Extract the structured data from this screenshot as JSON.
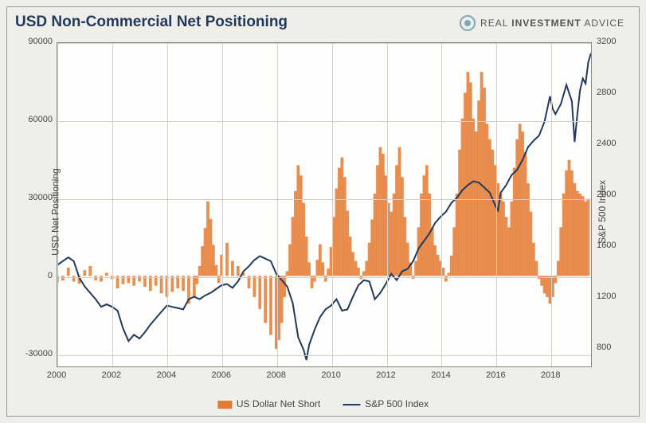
{
  "title": "USD Non-Commercial Net Positioning",
  "logo": {
    "brand_pre": "REAL ",
    "brand_bold": "INVESTMENT",
    "brand_post": " ADVICE"
  },
  "chart": {
    "type": "dual-axis-bar-line",
    "background_color": "#fdfdfb",
    "outer_background_color": "#efeee9",
    "grid_color": "#d0d0cc",
    "border_color": "#888888",
    "x": {
      "ticks": [
        2000,
        2002,
        2004,
        2006,
        2008,
        2010,
        2012,
        2014,
        2016,
        2018
      ],
      "lim": [
        2000,
        2019.5
      ]
    },
    "yL": {
      "label": "USD Net Positioning",
      "ticks": [
        -30000,
        0,
        30000,
        60000,
        90000
      ],
      "lim": [
        -35000,
        90000
      ]
    },
    "yR": {
      "label": "S&P 500 Index",
      "ticks": [
        800,
        1200,
        1600,
        2000,
        2400,
        2800,
        3200
      ],
      "lim": [
        650,
        3200
      ]
    },
    "bars": {
      "name": "US Dollar Net Short",
      "color": "#e57a32",
      "data": [
        [
          2000.0,
          -2500
        ],
        [
          2000.2,
          -1800
        ],
        [
          2000.4,
          3200
        ],
        [
          2000.6,
          -2200
        ],
        [
          2000.8,
          -3000
        ],
        [
          2001.0,
          2200
        ],
        [
          2001.2,
          3800
        ],
        [
          2001.4,
          -1800
        ],
        [
          2001.6,
          -2200
        ],
        [
          2001.8,
          1200
        ],
        [
          2002.0,
          -1200
        ],
        [
          2002.2,
          -4800
        ],
        [
          2002.4,
          -3200
        ],
        [
          2002.6,
          -2800
        ],
        [
          2002.8,
          -3800
        ],
        [
          2003.0,
          -2200
        ],
        [
          2003.2,
          -4200
        ],
        [
          2003.4,
          -5800
        ],
        [
          2003.6,
          -3800
        ],
        [
          2003.8,
          -6800
        ],
        [
          2004.0,
          -8200
        ],
        [
          2004.2,
          -6200
        ],
        [
          2004.4,
          -4800
        ],
        [
          2004.6,
          -5800
        ],
        [
          2004.8,
          -10800
        ],
        [
          2005.0,
          -8200
        ],
        [
          2005.1,
          -3200
        ],
        [
          2005.2,
          3800
        ],
        [
          2005.3,
          11500
        ],
        [
          2005.4,
          18500
        ],
        [
          2005.5,
          28800
        ],
        [
          2005.6,
          22000
        ],
        [
          2005.7,
          12000
        ],
        [
          2005.8,
          4200
        ],
        [
          2005.9,
          -2800
        ],
        [
          2006.0,
          8200
        ],
        [
          2006.2,
          12800
        ],
        [
          2006.4,
          5800
        ],
        [
          2006.6,
          3800
        ],
        [
          2006.8,
          1200
        ],
        [
          2007.0,
          -4800
        ],
        [
          2007.2,
          -8200
        ],
        [
          2007.4,
          -12800
        ],
        [
          2007.6,
          -18200
        ],
        [
          2007.8,
          -22800
        ],
        [
          2008.0,
          -28200
        ],
        [
          2008.1,
          -24800
        ],
        [
          2008.2,
          -18200
        ],
        [
          2008.3,
          -8200
        ],
        [
          2008.4,
          1800
        ],
        [
          2008.5,
          12200
        ],
        [
          2008.6,
          22800
        ],
        [
          2008.7,
          32800
        ],
        [
          2008.8,
          42800
        ],
        [
          2008.9,
          38800
        ],
        [
          2009.0,
          28200
        ],
        [
          2009.1,
          15200
        ],
        [
          2009.2,
          5200
        ],
        [
          2009.3,
          -4800
        ],
        [
          2009.4,
          -2200
        ],
        [
          2009.5,
          6200
        ],
        [
          2009.6,
          12200
        ],
        [
          2009.7,
          5200
        ],
        [
          2009.8,
          -2200
        ],
        [
          2009.9,
          2800
        ],
        [
          2010.0,
          11200
        ],
        [
          2010.1,
          22800
        ],
        [
          2010.2,
          33800
        ],
        [
          2010.3,
          41800
        ],
        [
          2010.4,
          45800
        ],
        [
          2010.5,
          38200
        ],
        [
          2010.6,
          25200
        ],
        [
          2010.7,
          15200
        ],
        [
          2010.8,
          9200
        ],
        [
          2010.9,
          5800
        ],
        [
          2011.0,
          3200
        ],
        [
          2011.1,
          -1200
        ],
        [
          2011.2,
          1800
        ],
        [
          2011.3,
          5800
        ],
        [
          2011.4,
          12800
        ],
        [
          2011.5,
          21800
        ],
        [
          2011.6,
          31800
        ],
        [
          2011.7,
          42800
        ],
        [
          2011.8,
          49800
        ],
        [
          2011.9,
          47200
        ],
        [
          2012.0,
          38800
        ],
        [
          2012.1,
          28200
        ],
        [
          2012.2,
          24800
        ],
        [
          2012.3,
          31800
        ],
        [
          2012.4,
          42800
        ],
        [
          2012.5,
          49800
        ],
        [
          2012.6,
          38200
        ],
        [
          2012.7,
          22800
        ],
        [
          2012.8,
          12800
        ],
        [
          2012.9,
          5200
        ],
        [
          2013.0,
          -1200
        ],
        [
          2013.1,
          5800
        ],
        [
          2013.2,
          18800
        ],
        [
          2013.3,
          31800
        ],
        [
          2013.4,
          38800
        ],
        [
          2013.5,
          42800
        ],
        [
          2013.6,
          31800
        ],
        [
          2013.7,
          18800
        ],
        [
          2013.8,
          11800
        ],
        [
          2013.9,
          8200
        ],
        [
          2014.0,
          5800
        ],
        [
          2014.1,
          3200
        ],
        [
          2014.2,
          -2200
        ],
        [
          2014.3,
          1200
        ],
        [
          2014.4,
          7800
        ],
        [
          2014.5,
          18800
        ],
        [
          2014.6,
          31800
        ],
        [
          2014.7,
          48800
        ],
        [
          2014.8,
          60800
        ],
        [
          2014.9,
          70800
        ],
        [
          2015.0,
          78800
        ],
        [
          2015.1,
          74800
        ],
        [
          2015.2,
          60800
        ],
        [
          2015.3,
          55800
        ],
        [
          2015.4,
          67800
        ],
        [
          2015.5,
          78800
        ],
        [
          2015.6,
          72800
        ],
        [
          2015.7,
          58800
        ],
        [
          2015.8,
          52800
        ],
        [
          2015.9,
          48800
        ],
        [
          2016.0,
          42800
        ],
        [
          2016.1,
          35800
        ],
        [
          2016.2,
          31800
        ],
        [
          2016.3,
          28800
        ],
        [
          2016.4,
          22800
        ],
        [
          2016.5,
          18800
        ],
        [
          2016.6,
          28800
        ],
        [
          2016.7,
          41800
        ],
        [
          2016.8,
          52800
        ],
        [
          2016.9,
          58800
        ],
        [
          2017.0,
          55800
        ],
        [
          2017.1,
          47800
        ],
        [
          2017.2,
          35800
        ],
        [
          2017.3,
          24800
        ],
        [
          2017.4,
          12800
        ],
        [
          2017.5,
          5800
        ],
        [
          2017.6,
          -1200
        ],
        [
          2017.7,
          -3800
        ],
        [
          2017.8,
          -6800
        ],
        [
          2017.9,
          -8200
        ],
        [
          2018.0,
          -10800
        ],
        [
          2018.1,
          -8200
        ],
        [
          2018.2,
          -2800
        ],
        [
          2018.3,
          5800
        ],
        [
          2018.4,
          18800
        ],
        [
          2018.5,
          31800
        ],
        [
          2018.6,
          40800
        ],
        [
          2018.7,
          44800
        ],
        [
          2018.8,
          40800
        ],
        [
          2018.9,
          35800
        ],
        [
          2019.0,
          32800
        ],
        [
          2019.1,
          31800
        ],
        [
          2019.2,
          30800
        ],
        [
          2019.3,
          28800
        ],
        [
          2019.4,
          29800
        ]
      ]
    },
    "line": {
      "name": "S&P 500 Index",
      "color": "#1f3a5c",
      "width": 2,
      "data": [
        [
          2000.0,
          1450
        ],
        [
          2000.2,
          1480
        ],
        [
          2000.4,
          1510
        ],
        [
          2000.6,
          1480
        ],
        [
          2000.8,
          1350
        ],
        [
          2001.0,
          1280
        ],
        [
          2001.2,
          1230
        ],
        [
          2001.4,
          1180
        ],
        [
          2001.6,
          1120
        ],
        [
          2001.8,
          1140
        ],
        [
          2002.0,
          1120
        ],
        [
          2002.2,
          1090
        ],
        [
          2002.4,
          950
        ],
        [
          2002.6,
          850
        ],
        [
          2002.8,
          900
        ],
        [
          2003.0,
          870
        ],
        [
          2003.2,
          920
        ],
        [
          2003.4,
          980
        ],
        [
          2003.6,
          1030
        ],
        [
          2003.8,
          1080
        ],
        [
          2004.0,
          1130
        ],
        [
          2004.2,
          1120
        ],
        [
          2004.4,
          1110
        ],
        [
          2004.6,
          1100
        ],
        [
          2004.8,
          1180
        ],
        [
          2005.0,
          1200
        ],
        [
          2005.2,
          1180
        ],
        [
          2005.4,
          1210
        ],
        [
          2005.6,
          1230
        ],
        [
          2005.8,
          1260
        ],
        [
          2006.0,
          1290
        ],
        [
          2006.2,
          1300
        ],
        [
          2006.4,
          1270
        ],
        [
          2006.6,
          1320
        ],
        [
          2006.8,
          1400
        ],
        [
          2007.0,
          1440
        ],
        [
          2007.2,
          1490
        ],
        [
          2007.4,
          1520
        ],
        [
          2007.6,
          1500
        ],
        [
          2007.8,
          1480
        ],
        [
          2008.0,
          1380
        ],
        [
          2008.2,
          1330
        ],
        [
          2008.4,
          1280
        ],
        [
          2008.6,
          1150
        ],
        [
          2008.8,
          880
        ],
        [
          2009.0,
          780
        ],
        [
          2009.1,
          700
        ],
        [
          2009.2,
          820
        ],
        [
          2009.4,
          940
        ],
        [
          2009.6,
          1040
        ],
        [
          2009.8,
          1100
        ],
        [
          2010.0,
          1130
        ],
        [
          2010.2,
          1180
        ],
        [
          2010.4,
          1090
        ],
        [
          2010.6,
          1100
        ],
        [
          2010.8,
          1200
        ],
        [
          2011.0,
          1290
        ],
        [
          2011.2,
          1330
        ],
        [
          2011.4,
          1320
        ],
        [
          2011.6,
          1180
        ],
        [
          2011.8,
          1230
        ],
        [
          2012.0,
          1300
        ],
        [
          2012.2,
          1380
        ],
        [
          2012.4,
          1330
        ],
        [
          2012.6,
          1400
        ],
        [
          2012.8,
          1420
        ],
        [
          2013.0,
          1480
        ],
        [
          2013.2,
          1580
        ],
        [
          2013.4,
          1640
        ],
        [
          2013.6,
          1700
        ],
        [
          2013.8,
          1780
        ],
        [
          2014.0,
          1830
        ],
        [
          2014.2,
          1870
        ],
        [
          2014.4,
          1940
        ],
        [
          2014.6,
          1980
        ],
        [
          2014.8,
          2040
        ],
        [
          2015.0,
          2080
        ],
        [
          2015.2,
          2110
        ],
        [
          2015.4,
          2100
        ],
        [
          2015.6,
          2060
        ],
        [
          2015.8,
          2020
        ],
        [
          2016.0,
          1920
        ],
        [
          2016.1,
          1880
        ],
        [
          2016.2,
          2020
        ],
        [
          2016.4,
          2080
        ],
        [
          2016.6,
          2160
        ],
        [
          2016.8,
          2200
        ],
        [
          2017.0,
          2280
        ],
        [
          2017.2,
          2380
        ],
        [
          2017.4,
          2430
        ],
        [
          2017.6,
          2470
        ],
        [
          2017.8,
          2580
        ],
        [
          2018.0,
          2780
        ],
        [
          2018.1,
          2680
        ],
        [
          2018.2,
          2640
        ],
        [
          2018.4,
          2720
        ],
        [
          2018.6,
          2870
        ],
        [
          2018.8,
          2740
        ],
        [
          2018.9,
          2420
        ],
        [
          2019.0,
          2640
        ],
        [
          2019.1,
          2830
        ],
        [
          2019.2,
          2920
        ],
        [
          2019.3,
          2880
        ],
        [
          2019.4,
          3050
        ],
        [
          2019.5,
          3120
        ]
      ]
    }
  },
  "legend": {
    "series1": "US Dollar Net Short",
    "series2": "S&P 500 Index"
  }
}
